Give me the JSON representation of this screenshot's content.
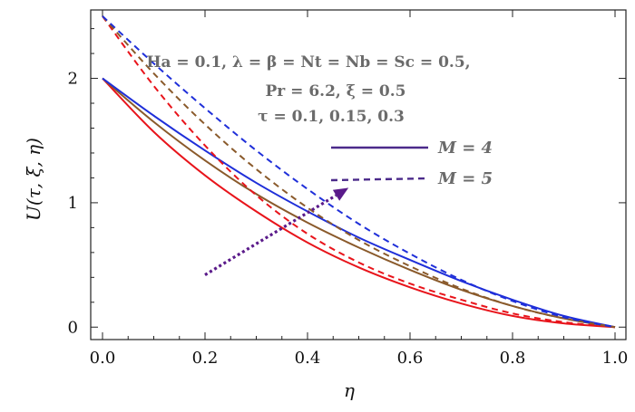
{
  "chart_data": {
    "type": "line",
    "xlabel": "η",
    "ylabel": "U(τ, ξ, η)",
    "xlim": [
      0,
      1
    ],
    "ylim": [
      -0.1,
      2.55
    ],
    "xticks": [
      0,
      0.2,
      0.4,
      0.6,
      0.8,
      1.0
    ],
    "xtick_labels": [
      "0.0",
      "0.2",
      "0.4",
      "0.6",
      "0.8",
      "1.0"
    ],
    "yticks": [
      0,
      1,
      2
    ],
    "ytick_labels": [
      "0",
      "1",
      "2"
    ],
    "grid": false,
    "annotation_lines": [
      "Ha = 0.1, λ = β = Nt = Nb = Sc = 0.5,",
      "Pr = 6.2, ξ = 0.5",
      "τ = 0.1, 0.15, 0.3"
    ],
    "legend": [
      {
        "label": "M = 4",
        "style": "solid",
        "color": "#4b2a8a"
      },
      {
        "label": "M = 5",
        "style": "dashed",
        "color": "#4b2a8a"
      }
    ],
    "arrow": {
      "from": [
        0.2,
        0.42
      ],
      "to": [
        0.48,
        1.12
      ],
      "color": "#5a1a8a",
      "style": "dotted"
    },
    "x": [
      0,
      0.1,
      0.2,
      0.3,
      0.4,
      0.5,
      0.6,
      0.7,
      0.8,
      0.9,
      1.0
    ],
    "series": [
      {
        "style": "solid",
        "color": "#e8141b",
        "values": [
          2.0,
          1.57,
          1.22,
          0.93,
          0.68,
          0.48,
          0.32,
          0.19,
          0.09,
          0.03,
          0.0
        ]
      },
      {
        "style": "solid",
        "color": "#8a5a2b",
        "values": [
          2.0,
          1.65,
          1.34,
          1.07,
          0.84,
          0.64,
          0.46,
          0.3,
          0.17,
          0.07,
          0.0
        ]
      },
      {
        "style": "solid",
        "color": "#1f2fd9",
        "values": [
          2.0,
          1.7,
          1.42,
          1.16,
          0.93,
          0.72,
          0.54,
          0.37,
          0.22,
          0.09,
          0.0
        ]
      },
      {
        "style": "dashed",
        "color": "#e8141b",
        "values": [
          2.5,
          1.94,
          1.46,
          1.06,
          0.75,
          0.52,
          0.35,
          0.22,
          0.11,
          0.04,
          0.0
        ]
      },
      {
        "style": "dashed",
        "color": "#8a5a2b",
        "values": [
          2.5,
          2.04,
          1.63,
          1.27,
          0.96,
          0.7,
          0.49,
          0.31,
          0.17,
          0.07,
          0.0
        ]
      },
      {
        "style": "dashed",
        "color": "#1f2fd9",
        "values": [
          2.5,
          2.12,
          1.76,
          1.42,
          1.11,
          0.83,
          0.59,
          0.38,
          0.21,
          0.08,
          0.0
        ]
      }
    ]
  }
}
